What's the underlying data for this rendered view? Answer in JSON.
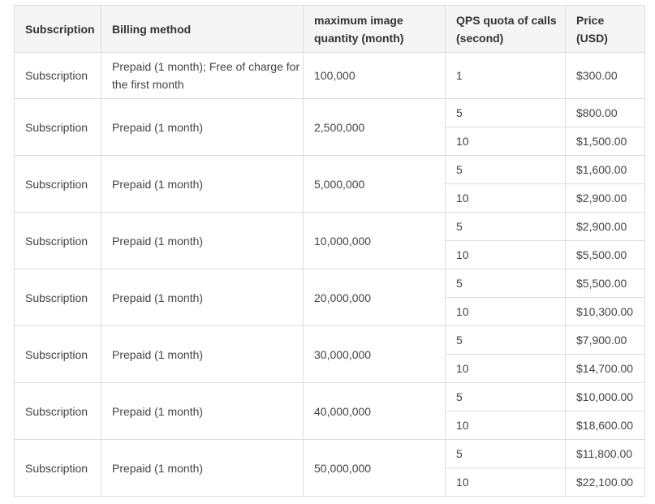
{
  "table": {
    "headers": [
      "Subscription",
      "Billing method",
      "maximum image quantity (month)",
      "QPS quota of calls (second)",
      "Price (USD)"
    ],
    "header_lines": [
      [
        "Subscription"
      ],
      [
        "Billing method"
      ],
      [
        "maximum image",
        "quantity (month)"
      ],
      [
        "QPS quota of calls",
        "(second)"
      ],
      [
        "Price",
        "(USD)"
      ]
    ],
    "rows": [
      {
        "subscription": "Subscription",
        "billing": "Prepaid (1 month); Free of charge for the first month",
        "quantity": "100,000",
        "tiers": [
          {
            "qps": "1",
            "price": "$300.00"
          }
        ]
      },
      {
        "subscription": "Subscription",
        "billing": "Prepaid (1 month)",
        "quantity": "2,500,000",
        "tiers": [
          {
            "qps": "5",
            "price": "$800.00"
          },
          {
            "qps": "10",
            "price": "$1,500.00"
          }
        ]
      },
      {
        "subscription": "Subscription",
        "billing": "Prepaid (1 month)",
        "quantity": "5,000,000",
        "tiers": [
          {
            "qps": "5",
            "price": "$1,600.00"
          },
          {
            "qps": "10",
            "price": "$2,900.00"
          }
        ]
      },
      {
        "subscription": "Subscription",
        "billing": "Prepaid (1 month)",
        "quantity": "10,000,000",
        "tiers": [
          {
            "qps": "5",
            "price": "$2,900.00"
          },
          {
            "qps": "10",
            "price": "$5,500.00"
          }
        ]
      },
      {
        "subscription": "Subscription",
        "billing": "Prepaid (1 month)",
        "quantity": "20,000,000",
        "tiers": [
          {
            "qps": "5",
            "price": "$5,500.00"
          },
          {
            "qps": "10",
            "price": "$10,300.00"
          }
        ]
      },
      {
        "subscription": "Subscription",
        "billing": "Prepaid (1 month)",
        "quantity": "30,000,000",
        "tiers": [
          {
            "qps": "5",
            "price": "$7,900.00"
          },
          {
            "qps": "10",
            "price": "$14,700.00"
          }
        ]
      },
      {
        "subscription": "Subscription",
        "billing": "Prepaid (1 month)",
        "quantity": "40,000,000",
        "tiers": [
          {
            "qps": "5",
            "price": "$10,000.00"
          },
          {
            "qps": "10",
            "price": "$18,600.00"
          }
        ]
      },
      {
        "subscription": "Subscription",
        "billing": "Prepaid (1 month)",
        "quantity": "50,000,000",
        "tiers": [
          {
            "qps": "5",
            "price": "$11,800.00"
          },
          {
            "qps": "10",
            "price": "$22,100.00"
          }
        ]
      }
    ]
  }
}
